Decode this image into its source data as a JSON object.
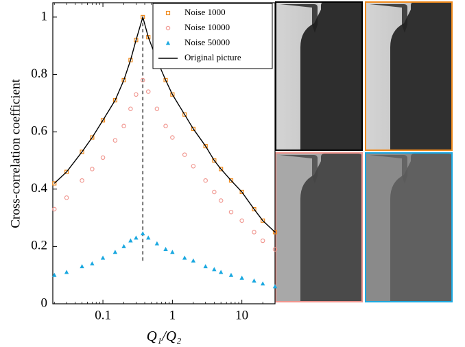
{
  "chart_data": {
    "type": "line",
    "x_label": "Q₁/Q₂",
    "y_label": "Cross-correlation coefficient",
    "x": [
      0.02,
      0.03,
      0.05,
      0.07,
      0.1,
      0.15,
      0.2,
      0.25,
      0.3,
      0.375,
      0.45,
      0.6,
      0.8,
      1,
      1.5,
      2,
      3,
      4,
      5,
      7,
      10,
      15,
      20,
      30
    ],
    "series": [
      {
        "name": "Noise 1000",
        "color": "#f08a1c",
        "marker": "square",
        "values": [
          0.42,
          0.46,
          0.53,
          0.58,
          0.64,
          0.71,
          0.78,
          0.85,
          0.92,
          1.0,
          0.93,
          0.85,
          0.78,
          0.73,
          0.66,
          0.61,
          0.55,
          0.5,
          0.47,
          0.43,
          0.39,
          0.33,
          0.29,
          0.25
        ]
      },
      {
        "name": "Noise 10000",
        "color": "#f0958e",
        "marker": "circle",
        "values": [
          0.33,
          0.37,
          0.43,
          0.47,
          0.51,
          0.57,
          0.62,
          0.68,
          0.73,
          0.78,
          0.74,
          0.68,
          0.62,
          0.58,
          0.52,
          0.48,
          0.43,
          0.39,
          0.36,
          0.32,
          0.29,
          0.25,
          0.22,
          0.19
        ]
      },
      {
        "name": "Noise 50000",
        "color": "#1aa8e0",
        "marker": "triangle",
        "values": [
          0.1,
          0.11,
          0.13,
          0.14,
          0.16,
          0.18,
          0.2,
          0.22,
          0.23,
          0.245,
          0.23,
          0.21,
          0.19,
          0.18,
          0.16,
          0.15,
          0.13,
          0.12,
          0.11,
          0.1,
          0.09,
          0.08,
          0.07,
          0.06
        ]
      },
      {
        "name": "Original picture",
        "color": "#000000",
        "marker": "none",
        "values": [
          0.42,
          0.46,
          0.53,
          0.58,
          0.64,
          0.71,
          0.78,
          0.85,
          0.92,
          1.0,
          0.93,
          0.85,
          0.78,
          0.73,
          0.66,
          0.61,
          0.55,
          0.5,
          0.47,
          0.43,
          0.39,
          0.33,
          0.29,
          0.25
        ]
      }
    ],
    "xlim": [
      0.019,
      30
    ],
    "xticks": [
      0.1,
      1,
      10
    ],
    "x_log": true,
    "ylim": [
      0,
      1.05
    ],
    "yticks": [
      0,
      0.2,
      0.4,
      0.6,
      0.8,
      1
    ],
    "vline": {
      "x": 0.375,
      "ymin": 0.15,
      "ymax": 1.0
    },
    "legend": "upper right"
  }
}
